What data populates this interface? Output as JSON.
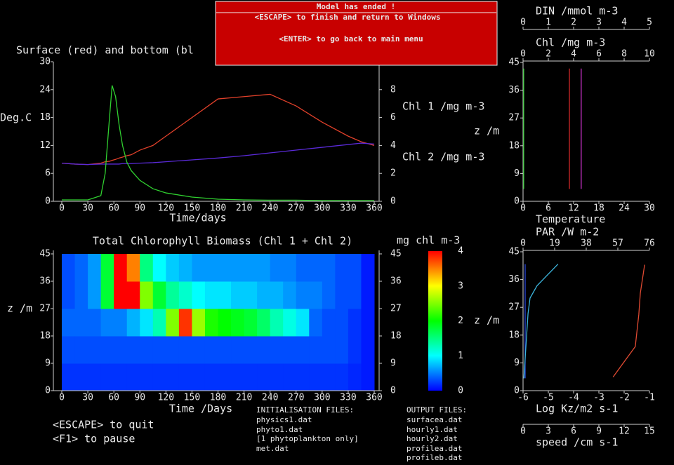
{
  "dialog": {
    "title": "Model has ended !",
    "lines": [
      "<ESCAPE> to finish and return to Windows",
      "<ENTER> to go back to main menu"
    ]
  },
  "chart_data": [
    {
      "type": "line",
      "title": "Surface (red) and bottom (bl",
      "xlabel": "Time/days",
      "ylabel": "Deg.C",
      "xlim": [
        0,
        360
      ],
      "xticks": [
        0,
        30,
        60,
        90,
        120,
        150,
        180,
        210,
        240,
        270,
        300,
        330,
        360
      ],
      "ylim": [
        0,
        30
      ],
      "yticks": [
        0,
        6,
        12,
        18,
        24,
        30
      ],
      "y2lim": [
        0,
        10
      ],
      "y2ticks": [
        0,
        2,
        4,
        6,
        8
      ],
      "y2labels": [
        {
          "text": "Chl 1 /mg m-3",
          "color": "#30d030"
        },
        {
          "text": "Chl 2 /mg m-3",
          "color": "#d8d830"
        }
      ],
      "x": [
        0,
        15,
        30,
        45,
        50,
        55,
        58,
        62,
        66,
        70,
        75,
        80,
        90,
        105,
        120,
        150,
        180,
        210,
        240,
        270,
        300,
        330,
        345,
        360
      ],
      "series": [
        {
          "color": "#e0402a",
          "values": [
            8.2,
            8,
            7.9,
            8.2,
            8.5,
            8.6,
            8.8,
            9,
            9.3,
            9.5,
            9.8,
            10,
            11,
            12,
            14,
            18,
            22,
            22.5,
            23,
            20.5,
            17,
            14,
            12.8,
            12
          ]
        },
        {
          "color": "#5a2ad8",
          "values": [
            8.2,
            8,
            7.9,
            8,
            8,
            8,
            8,
            8,
            8,
            8.1,
            8.1,
            8.1,
            8.2,
            8.3,
            8.5,
            8.9,
            9.3,
            9.8,
            10.4,
            11,
            11.6,
            12.2,
            12.5,
            12.3
          ]
        },
        {
          "name": "Chl 1 /mg m-3",
          "color": "#30d030",
          "axis": "y2",
          "values": [
            0.1,
            0.1,
            0.1,
            0.4,
            2,
            6,
            8.3,
            7.5,
            5.5,
            4,
            2.8,
            2.2,
            1.5,
            0.9,
            0.6,
            0.3,
            0.15,
            0.1,
            0.08,
            0.08,
            0.05,
            0.05,
            0.05,
            0.05
          ]
        }
      ]
    },
    {
      "type": "heatmap",
      "title": "Total Chlorophyll Biomass (Chl 1 + Chl 2)",
      "xlabel": "Time /Days",
      "ylabel": "z /m",
      "xlim": [
        0,
        360
      ],
      "xticks": [
        0,
        30,
        60,
        90,
        120,
        150,
        180,
        210,
        240,
        270,
        300,
        330,
        360
      ],
      "ylim": [
        0,
        45
      ],
      "yticks": [
        0,
        9,
        18,
        27,
        36,
        45
      ],
      "x_edges": [
        0,
        15,
        30,
        45,
        60,
        75,
        90,
        105,
        120,
        135,
        150,
        165,
        180,
        195,
        210,
        225,
        240,
        255,
        270,
        285,
        300,
        315,
        330,
        345,
        360
      ],
      "z_edges": [
        0,
        9,
        18,
        27,
        36,
        45
      ],
      "values": [
        [
          0.2,
          0.2,
          0.2,
          0.2,
          0.2,
          0.2,
          0.2,
          0.2,
          0.2,
          0.2,
          0.2,
          0.2,
          0.2,
          0.2,
          0.2,
          0.2,
          0.2,
          0.2,
          0.2,
          0.2,
          0.2,
          0.2,
          0.15,
          0.1
        ],
        [
          0.3,
          0.3,
          0.3,
          0.3,
          0.3,
          0.3,
          0.3,
          0.3,
          0.3,
          0.3,
          0.3,
          0.3,
          0.3,
          0.3,
          0.3,
          0.3,
          0.3,
          0.3,
          0.3,
          0.3,
          0.3,
          0.3,
          0.2,
          0.1
        ],
        [
          0.4,
          0.4,
          0.4,
          0.5,
          0.5,
          0.7,
          0.9,
          1.3,
          2.5,
          3.8,
          2.6,
          2.1,
          2,
          1.9,
          1.8,
          1.6,
          1.3,
          1.1,
          0.9,
          0.4,
          0.3,
          0.3,
          0.2,
          0.1
        ],
        [
          0.3,
          0.4,
          0.6,
          1.8,
          4,
          4,
          2.5,
          1.8,
          1.4,
          1.2,
          1,
          0.9,
          0.9,
          0.8,
          0.8,
          0.7,
          0.7,
          0.6,
          0.5,
          0.5,
          0.4,
          0.3,
          0.3,
          0.1
        ],
        [
          0.3,
          0.4,
          0.6,
          1.8,
          4,
          3.5,
          1.5,
          1,
          0.8,
          0.7,
          0.6,
          0.6,
          0.6,
          0.6,
          0.6,
          0.6,
          0.5,
          0.5,
          0.4,
          0.4,
          0.4,
          0.3,
          0.3,
          0.1
        ]
      ],
      "colormap": [
        "#0000ff",
        "#00ffff",
        "#00ff00",
        "#ffff00",
        "#ff0000"
      ],
      "clim": [
        0,
        4
      ],
      "cticks": [
        0,
        1,
        2,
        3,
        4
      ],
      "clabel": "mg chl m-3"
    },
    {
      "type": "profile",
      "ylabel": "z /m",
      "ylim": [
        0,
        45
      ],
      "yticks": [
        0,
        9,
        18,
        27,
        36,
        45
      ],
      "xaxes": [
        {
          "label": "DIN /mmol m-3",
          "color": "#c832c8",
          "position": "top",
          "xlim": [
            0,
            5
          ],
          "xticks": [
            0,
            1,
            2,
            3,
            4,
            5
          ]
        },
        {
          "label": "Chl /mg m-3",
          "color": "#32c832",
          "position": "top",
          "xlim": [
            0,
            10
          ],
          "xticks": [
            0,
            2,
            4,
            6,
            8,
            10
          ]
        },
        {
          "label": "Temperature",
          "color": "#e03232",
          "position": "bottom",
          "xlim": [
            0,
            30
          ],
          "xticks": [
            0,
            6,
            12,
            18,
            24,
            30
          ]
        }
      ],
      "series": [
        {
          "xaxis": 1,
          "color": "#32c832",
          "z": [
            4,
            43
          ],
          "values": [
            0.05,
            0.05
          ]
        },
        {
          "xaxis": 2,
          "color": "#d02828",
          "z": [
            4,
            43
          ],
          "values": [
            11,
            11
          ]
        },
        {
          "xaxis": 0,
          "color": "#c832c8",
          "z": [
            4,
            43
          ],
          "values": [
            2.3,
            2.3
          ]
        }
      ]
    },
    {
      "type": "profile",
      "ylabel": "z /m",
      "ylim": [
        0,
        45
      ],
      "yticks": [
        0,
        9,
        18,
        27,
        36,
        45
      ],
      "xaxes": [
        {
          "label": "PAR /W m-2",
          "color": "#3cb4dc",
          "position": "top",
          "xlim": [
            0,
            76
          ],
          "xticks": [
            0,
            19,
            38,
            57,
            76
          ]
        },
        {
          "label": "Log Kz/m2 s-1",
          "color": "#e03232",
          "position": "bottom",
          "xlim": [
            -6,
            -1
          ],
          "xticks": [
            -6,
            -5,
            -4,
            -3,
            -2,
            -1
          ]
        },
        {
          "label": "speed /cm s-1",
          "color": "#2846dc",
          "position": "bottom",
          "xlim": [
            0,
            15
          ],
          "xticks": [
            0,
            3,
            6,
            9,
            12,
            15
          ]
        }
      ],
      "series": [
        {
          "xaxis": 2,
          "color": "#2846dc",
          "z": [
            4,
            41
          ],
          "values": [
            0.25,
            0.25
          ]
        },
        {
          "xaxis": 0,
          "color": "#3cb4dc",
          "z": [
            4,
            25,
            30,
            34,
            41
          ],
          "values": [
            0.5,
            3,
            4.2,
            8.4,
            21
          ]
        },
        {
          "xaxis": 1,
          "color": "#e04a32",
          "z": [
            4.4,
            14.3,
            24.7,
            31.6,
            40.8
          ],
          "values": [
            -2.44,
            -1.56,
            -1.42,
            -1.36,
            -1.19
          ]
        }
      ]
    }
  ],
  "footer": {
    "keys": [
      "<ESCAPE> to quit",
      "<F1> to pause"
    ],
    "init_files": {
      "title": "INITIALISATION FILES:",
      "items": [
        "physics1.dat",
        "phyto1.dat",
        "[1 phytoplankton only]",
        "met.dat"
      ]
    },
    "output_files": {
      "title": "OUTPUT FILES:",
      "items": [
        "surfacea.dat",
        "hourly1.dat",
        "hourly2.dat",
        "profilea.dat",
        "profileb.dat"
      ]
    }
  }
}
